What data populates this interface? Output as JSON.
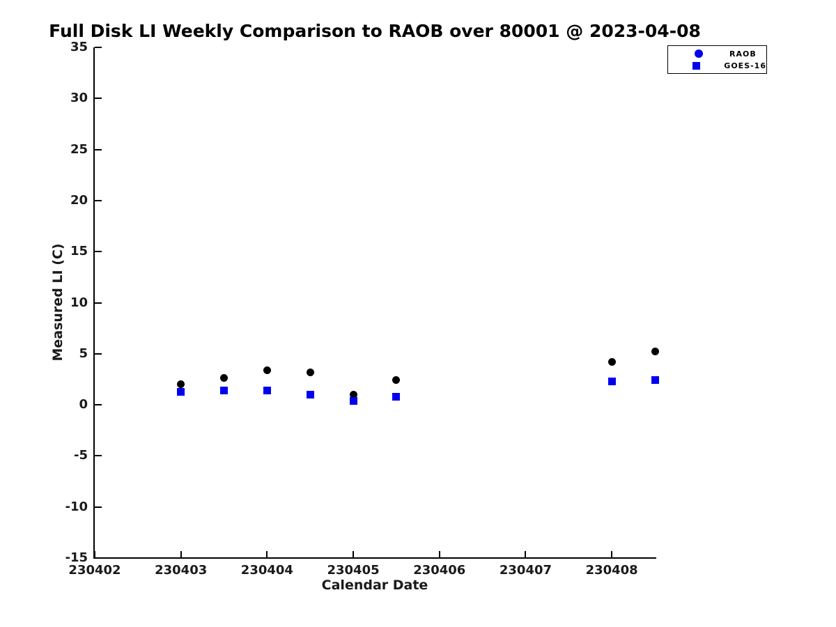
{
  "window": {
    "background_color": "#ffffff",
    "axis_color": "#000000",
    "text_color": "#1a1a1a"
  },
  "chart_data": {
    "type": "scatter",
    "title": "Full Disk LI Weekly Comparison to RAOB over 80001 @ 2023-04-08",
    "xlabel": "Calendar Date",
    "ylabel": "Measured LI (C)",
    "xlim": [
      230402,
      230408.5
    ],
    "ylim": [
      -15,
      35
    ],
    "x_ticks": [
      230402,
      230403,
      230404,
      230405,
      230406,
      230407,
      230408
    ],
    "y_ticks": [
      35,
      30,
      25,
      20,
      15,
      10,
      5,
      0,
      -5,
      -10,
      -15
    ],
    "grid": false,
    "box": "off",
    "tick_direction": "in",
    "legend": {
      "position": "top-right-outside-plot",
      "border_color": "#000000",
      "background": "#ffffff",
      "entries": [
        "RAOB",
        "GOES-16"
      ]
    },
    "series": [
      {
        "name": "RAOB",
        "marker": "circle",
        "color": "#000000",
        "legend_marker_color": "#0000EE",
        "x": [
          230403.0,
          230403.5,
          230404.0,
          230404.5,
          230405.0,
          230405.5,
          230408.0,
          230408.5
        ],
        "y": [
          2.0,
          2.6,
          3.4,
          3.2,
          1.0,
          2.4,
          4.2,
          5.2
        ]
      },
      {
        "name": "GOES-16",
        "marker": "square",
        "color": "#0000EE",
        "legend_marker_color": "#0000EE",
        "x": [
          230403.0,
          230403.5,
          230404.0,
          230404.5,
          230405.0,
          230405.5,
          230408.0,
          230408.5
        ],
        "y": [
          1.3,
          1.4,
          1.4,
          1.0,
          0.4,
          0.8,
          2.3,
          2.4
        ]
      }
    ]
  }
}
